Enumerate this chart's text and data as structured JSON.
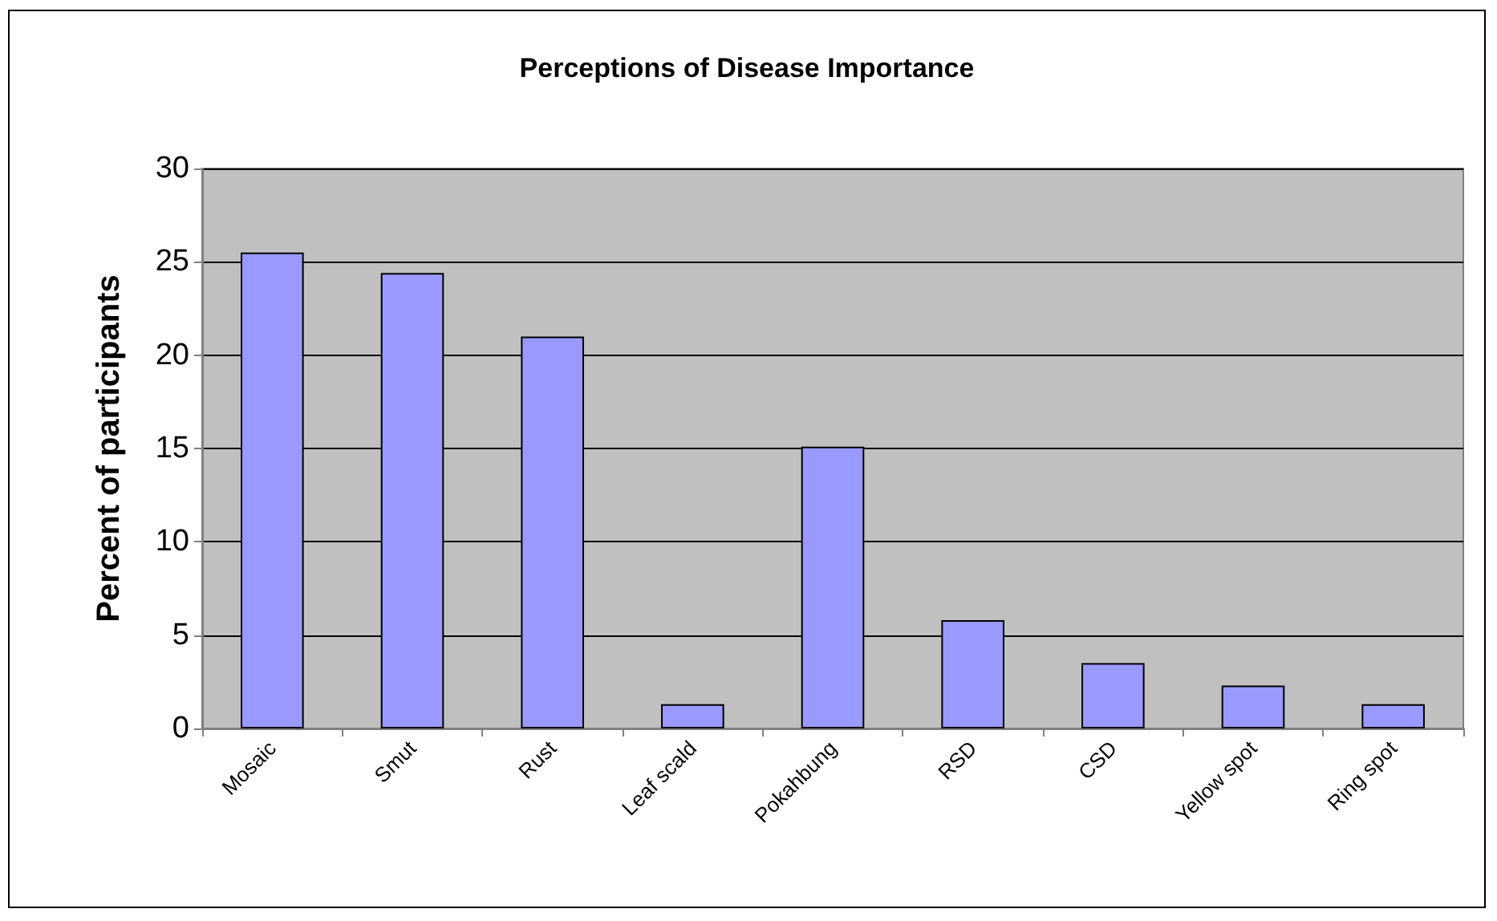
{
  "chart_data": {
    "type": "bar",
    "title": "Perceptions of Disease Importance",
    "ylabel": "Percent of participants",
    "categories": [
      "Mosaic",
      "Smut",
      "Rust",
      "Leaf scald",
      "Pokahbung",
      "RSD",
      "CSD",
      "Yellow spot",
      "Ring spot"
    ],
    "values": [
      25.5,
      24.4,
      21,
      1.3,
      15.1,
      5.8,
      3.5,
      2.3,
      1.3
    ],
    "color": "#9999ff",
    "ylim": [
      0,
      30
    ],
    "yticks": [
      0,
      5,
      10,
      15,
      20,
      25,
      30
    ],
    "grid": "y"
  }
}
